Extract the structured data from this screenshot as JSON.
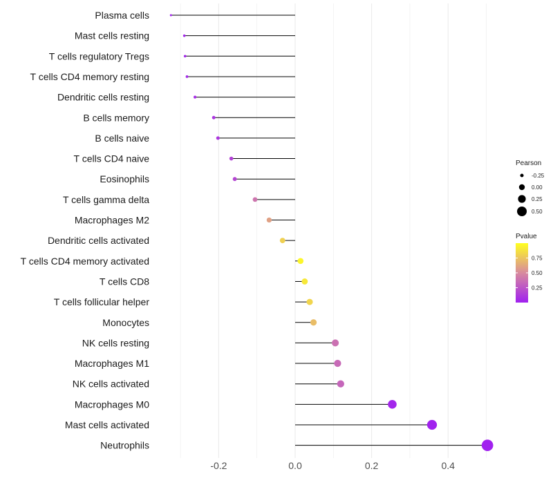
{
  "chart_data": {
    "type": "lollipop",
    "title": "",
    "xlabel": "",
    "ylabel": "",
    "xlim": [
      -0.3,
      0.5
    ],
    "xticks": [
      -0.2,
      0.0,
      0.2,
      0.4
    ],
    "xtick_labels": [
      "-0.2",
      "0.0",
      "0.2",
      "0.4"
    ],
    "grid": true,
    "categories": [
      "Plasma cells",
      "Mast cells resting",
      "T cells regulatory  Tregs",
      "T cells CD4 memory resting",
      "Dendritic cells resting",
      "B cells memory",
      "B cells naive",
      "T cells CD4 naive",
      "Eosinophils",
      "T cells gamma delta",
      "Macrophages M2",
      "Dendritic cells activated",
      "T cells CD4 memory activated",
      "T cells CD8",
      "T cells follicular helper",
      "Monocytes",
      "NK cells resting",
      "Macrophages M1",
      "NK cells activated",
      "Macrophages M0",
      "Mast cells activated",
      "Neutrophils"
    ],
    "pearson": [
      -0.325,
      -0.29,
      -0.288,
      -0.283,
      -0.262,
      -0.213,
      -0.202,
      -0.167,
      -0.158,
      -0.105,
      -0.068,
      -0.033,
      0.014,
      0.025,
      0.038,
      0.048,
      0.105,
      0.111,
      0.119,
      0.254,
      0.358,
      0.503
    ],
    "pvalue": [
      0.02,
      0.03,
      0.03,
      0.04,
      0.06,
      0.1,
      0.11,
      0.16,
      0.18,
      0.4,
      0.6,
      0.8,
      0.96,
      0.9,
      0.82,
      0.72,
      0.38,
      0.35,
      0.33,
      0.03,
      0.01,
      0.005
    ],
    "legend_size": {
      "title": "Pearson",
      "entries": [
        {
          "label": "-0.25",
          "value": -0.25
        },
        {
          "label": "0.00",
          "value": 0.0
        },
        {
          "label": "0.25",
          "value": 0.25
        },
        {
          "label": "0.50",
          "value": 0.5
        }
      ]
    },
    "legend_color": {
      "title": "Pvalue",
      "range": [
        0.0,
        1.0
      ],
      "ticks": [
        {
          "label": "0.75",
          "value": 0.75
        },
        {
          "label": "0.50",
          "value": 0.5
        },
        {
          "label": "0.25",
          "value": 0.25
        }
      ],
      "low_color": "#a020f0",
      "mid_color": "#d88a9e",
      "high_color": "#ffff20"
    },
    "segment_color": "#000000",
    "grid_color": "#ebebeb"
  }
}
